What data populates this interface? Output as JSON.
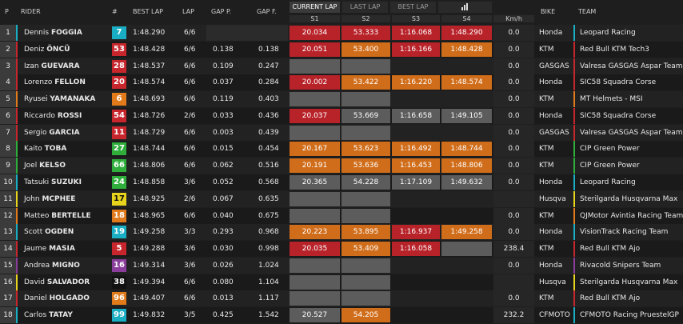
{
  "headers": {
    "p": "P",
    "rider": "RIDER",
    "number": "#",
    "best_lap": "BEST LAP",
    "lap": "LAP",
    "gap_p": "GAP P.",
    "gap_f": "GAP F.",
    "s1": "S1",
    "s2": "S2",
    "s3": "S3",
    "s4": "S4",
    "speed": "Km/h",
    "bike": "BIKE",
    "team": "TEAM"
  },
  "tabs": [
    "CURRENT LAP",
    "LAST LAP",
    "BEST LAP"
  ],
  "rows": [
    {
      "pos": 1,
      "first": "Dennis",
      "last": "FOGGIA",
      "number": 7,
      "number_color": "#1aaec4",
      "best_lap": "1:48.290",
      "lap": "6/6",
      "gap_p": null,
      "gap_f": null,
      "sectors": [
        {
          "time": "20.034",
          "color": "#b8232a"
        },
        {
          "time": "53.333",
          "color": "#b8232a"
        },
        {
          "time": "1:16.068",
          "color": "#b8232a"
        },
        {
          "time": "1:48.290",
          "color": "#b8232a"
        }
      ],
      "speed": "0.0",
      "bike": "Honda",
      "team": "Leopard Racing",
      "team_color": "#1aaec4"
    },
    {
      "pos": 2,
      "first": "Deniz",
      "last": "ÖNCÜ",
      "number": 53,
      "number_color": "#c8262d",
      "best_lap": "1:48.428",
      "lap": "6/6",
      "gap_p": "0.138",
      "gap_f": "0.138",
      "sectors": [
        {
          "time": "20.051",
          "color": "#b8232a"
        },
        {
          "time": "53.400",
          "color": "#d06d1a"
        },
        {
          "time": "1:16.166",
          "color": "#b8232a"
        },
        {
          "time": "1:48.428",
          "color": "#d06d1a"
        }
      ],
      "speed": "0.0",
      "bike": "KTM",
      "team": "Red Bull KTM Tech3",
      "team_color": "#c8262d"
    },
    {
      "pos": 3,
      "first": "Izan",
      "last": "GUEVARA",
      "number": 28,
      "number_color": "#c8262d",
      "best_lap": "1:48.537",
      "lap": "6/6",
      "gap_p": "0.109",
      "gap_f": "0.247",
      "sectors": [
        {
          "time": null,
          "color": "#5c5c5c"
        },
        {
          "time": null,
          "color": "#5c5c5c"
        },
        null,
        null
      ],
      "speed": "0.0",
      "bike": "GASGAS",
      "team": "Valresa GASGAS Aspar Team",
      "team_color": "#c8262d"
    },
    {
      "pos": 4,
      "first": "Lorenzo",
      "last": "FELLON",
      "number": 20,
      "number_color": "#c8262d",
      "best_lap": "1:48.574",
      "lap": "6/6",
      "gap_p": "0.037",
      "gap_f": "0.284",
      "sectors": [
        {
          "time": "20.002",
          "color": "#b8232a"
        },
        {
          "time": "53.422",
          "color": "#d06d1a"
        },
        {
          "time": "1:16.220",
          "color": "#d06d1a"
        },
        {
          "time": "1:48.574",
          "color": "#d06d1a"
        }
      ],
      "speed": "0.0",
      "bike": "Honda",
      "team": "SIC58 Squadra Corse",
      "team_color": "#c8262d"
    },
    {
      "pos": 5,
      "first": "Ryusei",
      "last": "YAMANAKA",
      "number": 6,
      "number_color": "#e07a1a",
      "best_lap": "1:48.693",
      "lap": "6/6",
      "gap_p": "0.119",
      "gap_f": "0.403",
      "sectors": [
        {
          "time": null,
          "color": "#5c5c5c"
        },
        {
          "time": null,
          "color": "#5c5c5c"
        },
        null,
        null
      ],
      "speed": "0.0",
      "bike": "KTM",
      "team": "MT Helmets - MSI",
      "team_color": "#e07a1a"
    },
    {
      "pos": 6,
      "first": "Riccardo",
      "last": "ROSSI",
      "number": 54,
      "number_color": "#c8262d",
      "best_lap": "1:48.726",
      "lap": "2/6",
      "gap_p": "0.033",
      "gap_f": "0.436",
      "sectors": [
        {
          "time": "20.037",
          "color": "#b8232a"
        },
        {
          "time": "53.669",
          "color": "#5c5c5c"
        },
        {
          "time": "1:16.658",
          "color": "#5c5c5c"
        },
        {
          "time": "1:49.105",
          "color": "#5c5c5c"
        }
      ],
      "speed": "0.0",
      "bike": "Honda",
      "team": "SIC58 Squadra Corse",
      "team_color": "#c8262d"
    },
    {
      "pos": 7,
      "first": "Sergio",
      "last": "GARCIA",
      "number": 11,
      "number_color": "#c8262d",
      "best_lap": "1:48.729",
      "lap": "6/6",
      "gap_p": "0.003",
      "gap_f": "0.439",
      "sectors": [
        {
          "time": null,
          "color": "#5c5c5c"
        },
        {
          "time": null,
          "color": "#5c5c5c"
        },
        null,
        null
      ],
      "speed": "0.0",
      "bike": "GASGAS",
      "team": "Valresa GASGAS Aspar Team",
      "team_color": "#c8262d"
    },
    {
      "pos": 8,
      "first": "Kaito",
      "last": "TOBA",
      "number": 27,
      "number_color": "#2fae3c",
      "best_lap": "1:48.744",
      "lap": "6/6",
      "gap_p": "0.015",
      "gap_f": "0.454",
      "sectors": [
        {
          "time": "20.167",
          "color": "#d06d1a"
        },
        {
          "time": "53.623",
          "color": "#d06d1a"
        },
        {
          "time": "1:16.492",
          "color": "#d06d1a"
        },
        {
          "time": "1:48.744",
          "color": "#d06d1a"
        }
      ],
      "speed": "0.0",
      "bike": "KTM",
      "team": "CIP Green Power",
      "team_color": "#2fae3c"
    },
    {
      "pos": 9,
      "first": "Joel",
      "last": "KELSO",
      "number": 66,
      "number_color": "#2fae3c",
      "best_lap": "1:48.806",
      "lap": "6/6",
      "gap_p": "0.062",
      "gap_f": "0.516",
      "sectors": [
        {
          "time": "20.191",
          "color": "#d06d1a"
        },
        {
          "time": "53.636",
          "color": "#d06d1a"
        },
        {
          "time": "1:16.453",
          "color": "#d06d1a"
        },
        {
          "time": "1:48.806",
          "color": "#d06d1a"
        }
      ],
      "speed": "0.0",
      "bike": "KTM",
      "team": "CIP Green Power",
      "team_color": "#2fae3c"
    },
    {
      "pos": 10,
      "first": "Tatsuki",
      "last": "SUZUKI",
      "number": 24,
      "number_color": "#2fae3c",
      "best_lap": "1:48.858",
      "lap": "3/6",
      "gap_p": "0.052",
      "gap_f": "0.568",
      "sectors": [
        {
          "time": "20.365",
          "color": "#5c5c5c"
        },
        {
          "time": "54.228",
          "color": "#5c5c5c"
        },
        {
          "time": "1:17.109",
          "color": "#5c5c5c"
        },
        {
          "time": "1:49.632",
          "color": "#5c5c5c"
        }
      ],
      "speed": "0.0",
      "bike": "Honda",
      "team": "Leopard Racing",
      "team_color": "#1aaec4"
    },
    {
      "pos": 11,
      "first": "John",
      "last": "MCPHEE",
      "number": 17,
      "number_color": "#e8d41c",
      "best_lap": "1:48.925",
      "lap": "2/6",
      "gap_p": "0.067",
      "gap_f": "0.635",
      "sectors": [
        {
          "time": null,
          "color": "#5c5c5c"
        },
        {
          "time": null,
          "color": "#5c5c5c"
        },
        null,
        null
      ],
      "speed": null,
      "bike": "Husqva",
      "team": "Sterilgarda Husqvarna Max",
      "team_color": "#e8d41c"
    },
    {
      "pos": 12,
      "first": "Matteo",
      "last": "BERTELLE",
      "number": 18,
      "number_color": "#e07a1a",
      "best_lap": "1:48.965",
      "lap": "6/6",
      "gap_p": "0.040",
      "gap_f": "0.675",
      "sectors": [
        {
          "time": null,
          "color": "#5c5c5c"
        },
        {
          "time": null,
          "color": "#5c5c5c"
        },
        null,
        null
      ],
      "speed": "0.0",
      "bike": "KTM",
      "team": "QJMotor Avintia Racing Team",
      "team_color": "#e07a1a"
    },
    {
      "pos": 13,
      "first": "Scott",
      "last": "OGDEN",
      "number": 19,
      "number_color": "#1aaec4",
      "best_lap": "1:49.258",
      "lap": "3/3",
      "gap_p": "0.293",
      "gap_f": "0.968",
      "sectors": [
        {
          "time": "20.223",
          "color": "#d06d1a"
        },
        {
          "time": "53.895",
          "color": "#d06d1a"
        },
        {
          "time": "1:16.937",
          "color": "#b8232a"
        },
        {
          "time": "1:49.258",
          "color": "#d06d1a"
        }
      ],
      "speed": "0.0",
      "bike": "Honda",
      "team": "VisionTrack Racing Team",
      "team_color": "#1aaec4"
    },
    {
      "pos": 14,
      "first": "Jaume",
      "last": "MASIA",
      "number": 5,
      "number_color": "#c8262d",
      "best_lap": "1:49.288",
      "lap": "3/6",
      "gap_p": "0.030",
      "gap_f": "0.998",
      "sectors": [
        {
          "time": "20.035",
          "color": "#b8232a"
        },
        {
          "time": "53.409",
          "color": "#d06d1a"
        },
        {
          "time": "1:16.058",
          "color": "#b8232a"
        },
        {
          "time": null,
          "color": "#5c5c5c"
        }
      ],
      "speed": "238.4",
      "bike": "KTM",
      "team": "Red Bull KTM Ajo",
      "team_color": "#c8262d"
    },
    {
      "pos": 15,
      "first": "Andrea",
      "last": "MIGNO",
      "number": 16,
      "number_color": "#8a3d9a",
      "best_lap": "1:49.314",
      "lap": "3/6",
      "gap_p": "0.026",
      "gap_f": "1.024",
      "sectors": [
        {
          "time": null,
          "color": "#5c5c5c"
        },
        {
          "time": null,
          "color": "#5c5c5c"
        },
        null,
        null
      ],
      "speed": "0.0",
      "bike": "Honda",
      "team": "Rivacold Snipers Team",
      "team_color": "#8a3d9a"
    },
    {
      "pos": 16,
      "first": "David",
      "last": "SALVADOR",
      "number": 38,
      "number_color": "#111111",
      "best_lap": "1:49.394",
      "lap": "6/6",
      "gap_p": "0.080",
      "gap_f": "1.104",
      "sectors": [
        {
          "time": null,
          "color": "#5c5c5c"
        },
        {
          "time": null,
          "color": "#5c5c5c"
        },
        null,
        null
      ],
      "speed": null,
      "bike": "Husqva",
      "team": "Sterilgarda Husqvarna Max",
      "team_color": "#e8d41c"
    },
    {
      "pos": 17,
      "first": "Daniel",
      "last": "HOLGADO",
      "number": 96,
      "number_color": "#e07a1a",
      "best_lap": "1:49.407",
      "lap": "6/6",
      "gap_p": "0.013",
      "gap_f": "1.117",
      "sectors": [
        {
          "time": null,
          "color": "#5c5c5c"
        },
        {
          "time": null,
          "color": "#5c5c5c"
        },
        null,
        null
      ],
      "speed": "0.0",
      "bike": "KTM",
      "team": "Red Bull KTM Ajo",
      "team_color": "#c8262d"
    },
    {
      "pos": 18,
      "first": "Carlos",
      "last": "TATAY",
      "number": 99,
      "number_color": "#1aaec4",
      "best_lap": "1:49.832",
      "lap": "3/5",
      "gap_p": "0.425",
      "gap_f": "1.542",
      "sectors": [
        {
          "time": "20.527",
          "color": "#5c5c5c"
        },
        {
          "time": "54.205",
          "color": "#d06d1a"
        },
        null,
        null
      ],
      "speed": "232.2",
      "bike": "CFMOTO",
      "team": "CFMOTO Racing PruestelGP",
      "team_color": "#1aaec4"
    }
  ]
}
